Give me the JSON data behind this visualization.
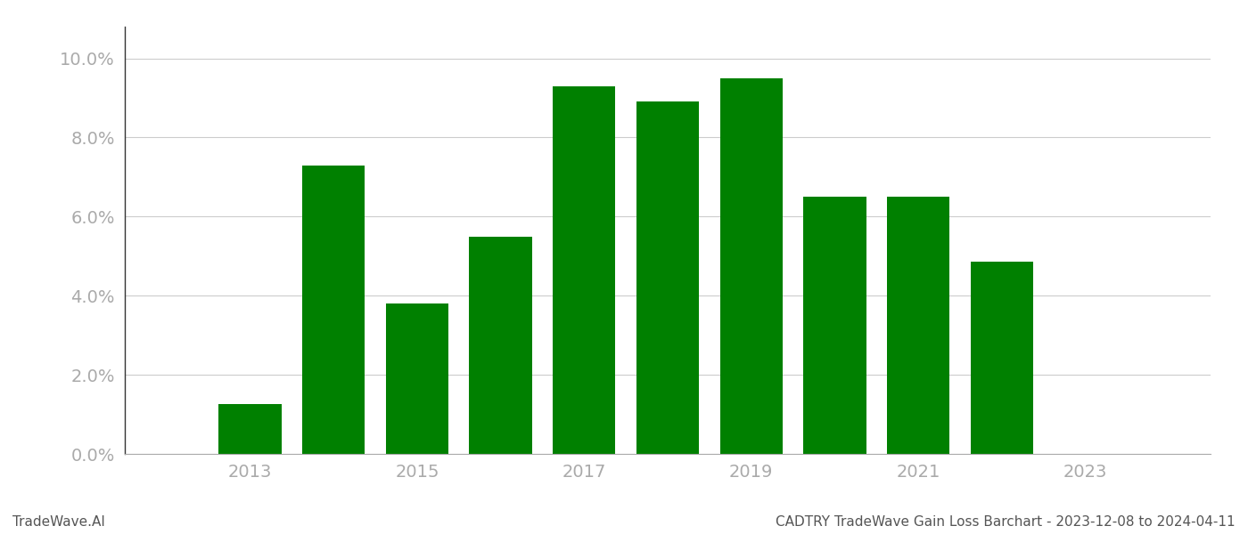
{
  "years": [
    2013,
    2014,
    2015,
    2016,
    2017,
    2018,
    2019,
    2020,
    2021,
    2022
  ],
  "values": [
    0.0125,
    0.073,
    0.038,
    0.055,
    0.093,
    0.089,
    0.095,
    0.065,
    0.065,
    0.0485
  ],
  "bar_color": "#008000",
  "background_color": "#ffffff",
  "grid_color": "#cccccc",
  "title": "CADTRY TradeWave Gain Loss Barchart - 2023-12-08 to 2024-04-11",
  "footer_left": "TradeWave.AI",
  "ylim": [
    0,
    0.108
  ],
  "yticks": [
    0.0,
    0.02,
    0.04,
    0.06,
    0.08,
    0.1
  ],
  "xtick_labels": [
    "2013",
    "2015",
    "2017",
    "2019",
    "2021",
    "2023"
  ],
  "xtick_positions": [
    2013,
    2015,
    2017,
    2019,
    2021,
    2023
  ],
  "title_fontsize": 11,
  "footer_fontsize": 11,
  "axis_label_color": "#aaaaaa",
  "tick_label_fontsize": 14,
  "bar_width": 0.75
}
